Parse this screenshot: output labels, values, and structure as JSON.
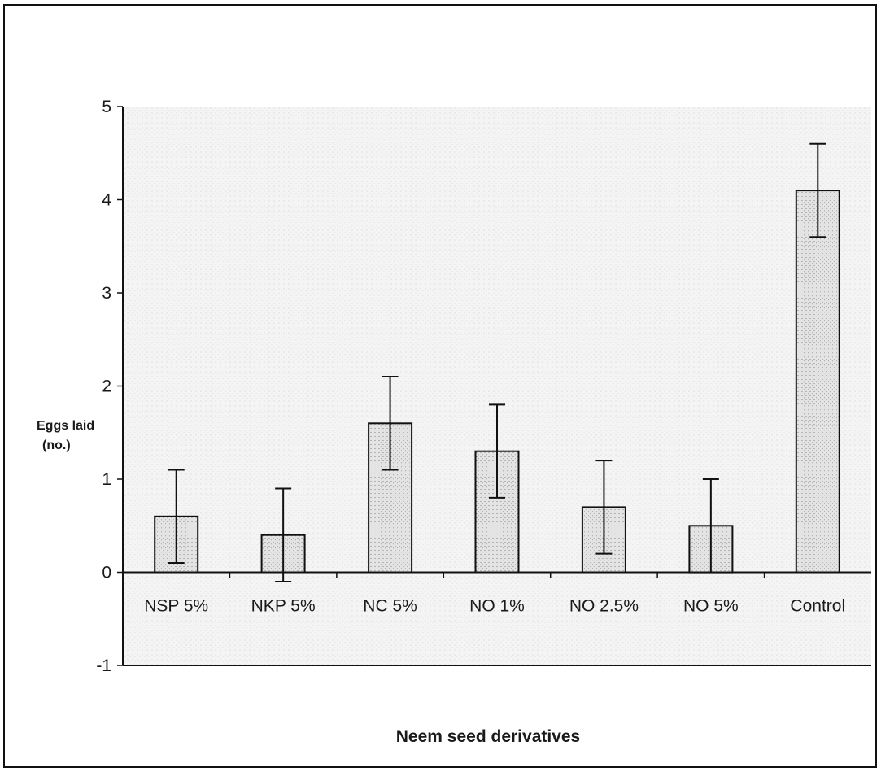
{
  "chart_data": {
    "type": "bar",
    "title": "",
    "xlabel": "Neem seed derivatives",
    "ylabel_line1": "Eggs laid",
    "ylabel_line2": "(no.)",
    "categories": [
      "NSP 5%",
      "NKP 5%",
      "NC 5%",
      "NO 1%",
      "NO 2.5%",
      "NO 5%",
      "Control"
    ],
    "series": [
      {
        "values": [
          0.6,
          0.4,
          1.6,
          1.3,
          0.7,
          0.5,
          4.1
        ],
        "error": [
          0.5,
          0.5,
          0.5,
          0.5,
          0.5,
          0.5,
          0.5
        ]
      }
    ],
    "ylim": [
      -1,
      5
    ],
    "yticks": [
      -1,
      0,
      1,
      2,
      3,
      4,
      5
    ],
    "grid": false,
    "legend": "none",
    "colors": {
      "bar_fill": "#e9e9e9",
      "bar_stroke": "#111111",
      "plot_background": "#f6f6f6"
    }
  }
}
